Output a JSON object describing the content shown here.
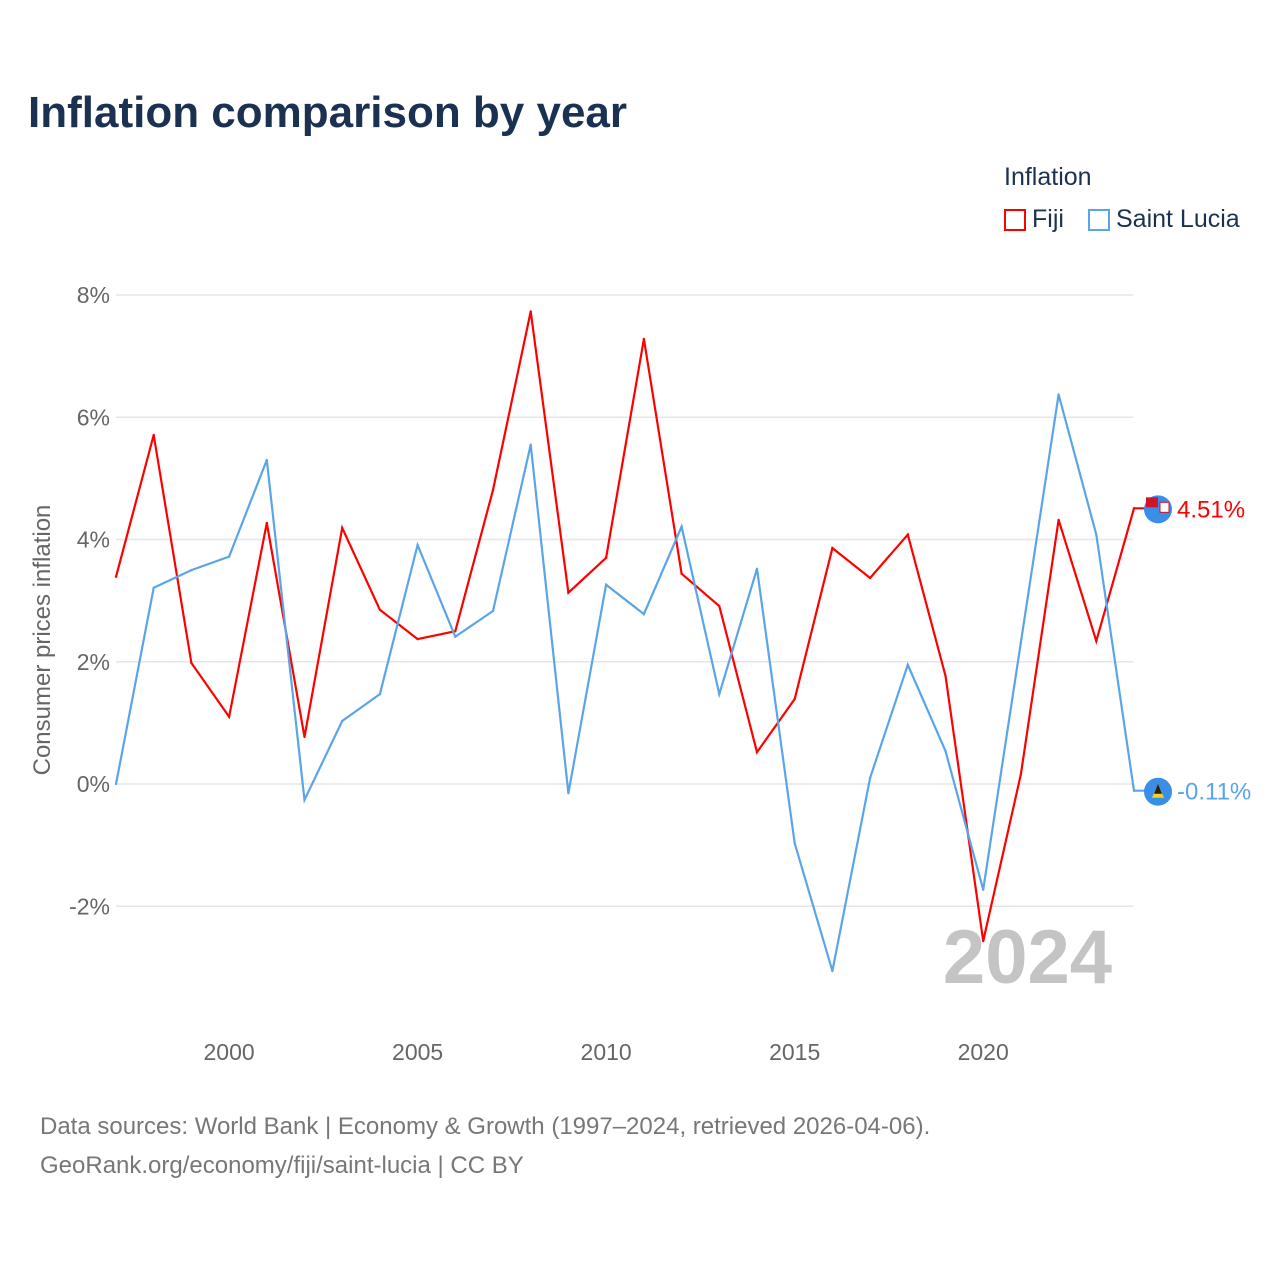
{
  "title": "Inflation comparison by year",
  "legend": {
    "title": "Inflation",
    "items": [
      {
        "label": "Fiji",
        "color": "#ff0000"
      },
      {
        "label": "Saint Lucia",
        "color": "#5aa5ea"
      }
    ]
  },
  "year_watermark": "2024",
  "footer": {
    "line1": "Data sources: World Bank | Economy & Growth (1997–2024, retrieved 2026-04-06).",
    "line2": "GeoRank.org/economy/fiji/saint-lucia | CC BY"
  },
  "chart_data": {
    "type": "line",
    "title": "Inflation comparison by year",
    "xlabel": "",
    "ylabel": "Consumer prices inflation",
    "x": [
      1997,
      1998,
      1999,
      2000,
      2001,
      2002,
      2003,
      2004,
      2005,
      2006,
      2007,
      2008,
      2009,
      2010,
      2011,
      2012,
      2013,
      2014,
      2015,
      2016,
      2017,
      2018,
      2019,
      2020,
      2021,
      2022,
      2023,
      2024
    ],
    "xticks": [
      2000,
      2005,
      2010,
      2015,
      2020
    ],
    "yticks": [
      8,
      6,
      4,
      2,
      0,
      -2
    ],
    "ytick_labels": [
      "8%",
      "6%",
      "4%",
      "2%",
      "0%",
      "-2%"
    ],
    "xlim": [
      1997,
      2024
    ],
    "ylim": [
      -3.5,
      8.3
    ],
    "grid": true,
    "legend_position": "top-right",
    "series": [
      {
        "name": "Fiji",
        "color": "#ff0000",
        "end_label": "4.51%",
        "values": [
          3.39,
          5.71,
          1.98,
          1.1,
          4.27,
          0.77,
          4.19,
          2.85,
          2.37,
          2.5,
          4.81,
          7.73,
          3.13,
          3.7,
          7.28,
          3.44,
          2.91,
          0.52,
          1.39,
          3.86,
          3.37,
          4.08,
          1.77,
          -2.57,
          0.16,
          4.32,
          2.34,
          4.51
        ]
      },
      {
        "name": "Saint Lucia",
        "color": "#5aa5ea",
        "end_label": "-0.11%",
        "values": [
          0.0,
          3.21,
          3.5,
          3.72,
          5.3,
          -0.26,
          1.03,
          1.47,
          3.91,
          2.41,
          2.83,
          5.55,
          -0.15,
          3.26,
          2.78,
          4.21,
          1.47,
          3.52,
          -0.97,
          -3.06,
          0.1,
          1.95,
          0.54,
          -1.73,
          2.32,
          6.37,
          4.08,
          -0.11
        ]
      }
    ]
  }
}
